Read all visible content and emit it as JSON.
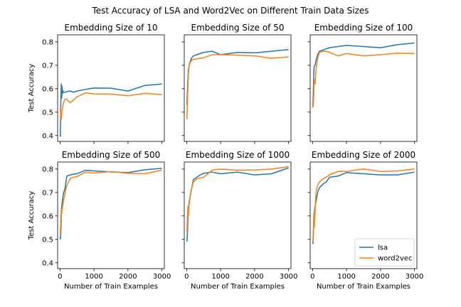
{
  "chart_data": {
    "title": "Test Accuracy of LSA and Word2Vec on Different Train Data Sizes",
    "type": "line",
    "grid": false,
    "shared_x": true,
    "shared_y": true,
    "xlabel": "Number of Train Examples",
    "ylabel": "Test Accuracy",
    "xlim": [
      -70,
      3070
    ],
    "ylim": [
      0.375,
      0.83
    ],
    "x_ticks": [
      0,
      1000,
      2000,
      3000
    ],
    "y_ticks": [
      0.4,
      0.5,
      0.6,
      0.7,
      0.8
    ],
    "legend": {
      "placement": "lower right",
      "subplot": 5
    },
    "colors": {
      "lsa": "#1f77b4",
      "word2vec": "#ff7f0e"
    },
    "subplots": [
      {
        "title": "Embedding Size of 10",
        "series": [
          {
            "name": "lsa",
            "x": [
              10,
              25,
              40,
              50,
              60,
              75,
              90,
              100,
              150,
              200,
              300,
              400,
              500,
              750,
              1000,
              1500,
              2000,
              2500,
              3000
            ],
            "y": [
              0.395,
              0.55,
              0.62,
              0.56,
              0.61,
              0.58,
              0.59,
              0.585,
              0.585,
              0.588,
              0.59,
              0.585,
              0.59,
              0.597,
              0.603,
              0.602,
              0.59,
              0.614,
              0.62
            ]
          },
          {
            "name": "word2vec",
            "x": [
              10,
              25,
              40,
              50,
              60,
              75,
              90,
              100,
              150,
              200,
              300,
              400,
              500,
              750,
              1000,
              1500,
              2000,
              2500,
              3000
            ],
            "y": [
              0.52,
              0.475,
              0.47,
              0.49,
              0.5,
              0.52,
              0.53,
              0.54,
              0.555,
              0.555,
              0.54,
              0.553,
              0.565,
              0.582,
              0.578,
              0.577,
              0.57,
              0.58,
              0.575
            ]
          }
        ]
      },
      {
        "title": "Embedding Size of 50",
        "series": [
          {
            "name": "lsa",
            "x": [
              10,
              25,
              40,
              50,
              75,
              100,
              150,
              200,
              300,
              400,
              500,
              750,
              1000,
              1500,
              2000,
              2500,
              3000
            ],
            "y": [
              0.53,
              0.6,
              0.65,
              0.68,
              0.7,
              0.715,
              0.732,
              0.74,
              0.745,
              0.75,
              0.755,
              0.76,
              0.745,
              0.755,
              0.753,
              0.76,
              0.767
            ]
          },
          {
            "name": "word2vec",
            "x": [
              10,
              25,
              40,
              50,
              75,
              100,
              150,
              200,
              300,
              400,
              500,
              750,
              1000,
              1500,
              2000,
              2500,
              3000
            ],
            "y": [
              0.47,
              0.55,
              0.62,
              0.66,
              0.7,
              0.71,
              0.722,
              0.725,
              0.728,
              0.73,
              0.732,
              0.745,
              0.745,
              0.743,
              0.74,
              0.73,
              0.736
            ]
          }
        ]
      },
      {
        "title": "Embedding Size of 100",
        "series": [
          {
            "name": "lsa",
            "x": [
              10,
              25,
              40,
              50,
              75,
              100,
              150,
              200,
              300,
              400,
              500,
              750,
              1000,
              1500,
              2000,
              2500,
              3000
            ],
            "y": [
              0.52,
              0.6,
              0.68,
              0.695,
              0.7,
              0.72,
              0.745,
              0.76,
              0.765,
              0.77,
              0.775,
              0.78,
              0.785,
              0.78,
              0.775,
              0.788,
              0.795
            ]
          },
          {
            "name": "word2vec",
            "x": [
              10,
              25,
              40,
              50,
              75,
              100,
              150,
              200,
              300,
              400,
              500,
              750,
              1000,
              1500,
              2000,
              2500,
              3000
            ],
            "y": [
              0.52,
              0.53,
              0.6,
              0.64,
              0.62,
              0.68,
              0.73,
              0.755,
              0.76,
              0.76,
              0.755,
              0.74,
              0.75,
              0.74,
              0.745,
              0.752,
              0.75
            ]
          }
        ]
      },
      {
        "title": "Embedding Size of 500",
        "series": [
          {
            "name": "lsa",
            "x": [
              10,
              25,
              40,
              50,
              75,
              100,
              150,
              200,
              300,
              400,
              500,
              750,
              1000,
              1500,
              2000,
              2500,
              3000
            ],
            "y": [
              0.5,
              0.53,
              0.6,
              0.64,
              0.67,
              0.695,
              0.72,
              0.77,
              0.775,
              0.778,
              0.78,
              0.795,
              0.792,
              0.788,
              0.785,
              0.797,
              0.803
            ]
          },
          {
            "name": "word2vec",
            "x": [
              10,
              25,
              40,
              50,
              75,
              100,
              150,
              200,
              300,
              400,
              500,
              750,
              1000,
              1500,
              2000,
              2500,
              3000
            ],
            "y": [
              0.52,
              0.58,
              0.63,
              0.61,
              0.64,
              0.66,
              0.7,
              0.73,
              0.76,
              0.765,
              0.768,
              0.787,
              0.783,
              0.789,
              0.782,
              0.78,
              0.795
            ]
          }
        ]
      },
      {
        "title": "Embedding Size of 1000",
        "series": [
          {
            "name": "lsa",
            "x": [
              10,
              25,
              40,
              50,
              75,
              100,
              150,
              200,
              300,
              400,
              500,
              750,
              1000,
              1500,
              2000,
              2500,
              3000
            ],
            "y": [
              0.49,
              0.53,
              0.6,
              0.63,
              0.66,
              0.68,
              0.72,
              0.755,
              0.765,
              0.775,
              0.782,
              0.787,
              0.78,
              0.787,
              0.775,
              0.78,
              0.805
            ]
          },
          {
            "name": "word2vec",
            "x": [
              10,
              25,
              40,
              50,
              75,
              100,
              150,
              200,
              300,
              400,
              500,
              750,
              1000,
              1500,
              2000,
              2500,
              3000
            ],
            "y": [
              0.53,
              0.6,
              0.64,
              0.6,
              0.65,
              0.68,
              0.72,
              0.745,
              0.758,
              0.762,
              0.765,
              0.795,
              0.8,
              0.795,
              0.796,
              0.8,
              0.81
            ]
          }
        ]
      },
      {
        "title": "Embedding Size of 2000",
        "series": [
          {
            "name": "lsa",
            "x": [
              10,
              25,
              40,
              50,
              75,
              100,
              150,
              200,
              300,
              400,
              500,
              750,
              1000,
              1500,
              2000,
              2500,
              3000
            ],
            "y": [
              0.48,
              0.52,
              0.6,
              0.61,
              0.64,
              0.66,
              0.7,
              0.72,
              0.735,
              0.745,
              0.765,
              0.77,
              0.785,
              0.78,
              0.775,
              0.775,
              0.787
            ]
          },
          {
            "name": "word2vec",
            "x": [
              10,
              25,
              40,
              50,
              75,
              100,
              150,
              200,
              300,
              400,
              500,
              750,
              1000,
              1500,
              2000,
              2500,
              3000
            ],
            "y": [
              0.49,
              0.54,
              0.61,
              0.55,
              0.62,
              0.7,
              0.73,
              0.745,
              0.758,
              0.765,
              0.775,
              0.79,
              0.79,
              0.8,
              0.79,
              0.792,
              0.8
            ]
          }
        ]
      }
    ]
  }
}
